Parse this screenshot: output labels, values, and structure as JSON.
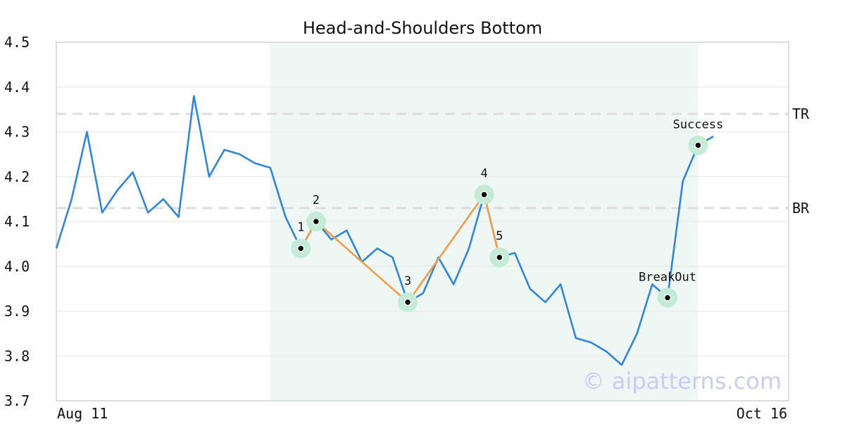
{
  "chart_data": {
    "type": "line",
    "title": "Head-and-Shoulders Bottom",
    "x_start_label": "Aug 11",
    "x_end_label": "Oct 16",
    "ylim": [
      3.7,
      4.5
    ],
    "yticks": [
      "3.7",
      "3.8",
      "3.9",
      "4.0",
      "4.1",
      "4.2",
      "4.3",
      "4.4",
      "4.5"
    ],
    "grid": true,
    "series": [
      {
        "values": [
          4.04,
          4.15,
          4.3,
          4.12,
          4.17,
          4.21,
          4.12,
          4.15,
          4.11,
          4.38,
          4.2,
          4.26,
          4.25,
          4.23,
          4.22,
          4.11,
          4.04,
          4.1,
          4.06,
          4.08,
          4.01,
          4.04,
          4.02,
          3.92,
          3.94,
          4.02,
          3.96,
          4.04,
          4.16,
          4.02,
          4.03,
          3.95,
          3.92,
          3.96,
          3.84,
          3.83,
          3.81,
          3.78,
          3.85,
          3.96,
          3.93,
          4.19,
          4.27,
          4.29
        ],
        "color": "#2e86de"
      }
    ],
    "pattern_region": {
      "start_index": 14,
      "end_index": 42,
      "color": "#eef7f3"
    },
    "pattern_points": [
      {
        "label": "1",
        "index": 16,
        "value": 4.04
      },
      {
        "label": "2",
        "index": 17,
        "value": 4.1
      },
      {
        "label": "3",
        "index": 23,
        "value": 3.92
      },
      {
        "label": "4",
        "index": 28,
        "value": 4.16
      },
      {
        "label": "5",
        "index": 29,
        "value": 4.02
      }
    ],
    "pattern_line_color": "#f39c4a",
    "marker_halo_color": "#c3ebd6",
    "events": [
      {
        "label": "BreakOut",
        "index": 40,
        "value": 3.93
      },
      {
        "label": "Success",
        "index": 42,
        "value": 4.27
      }
    ],
    "reference_lines": [
      {
        "label": "TR",
        "value": 4.34
      },
      {
        "label": "BR",
        "value": 4.13
      }
    ],
    "reference_line_color": "#dddddd",
    "watermark": "© aipatterns.com"
  }
}
